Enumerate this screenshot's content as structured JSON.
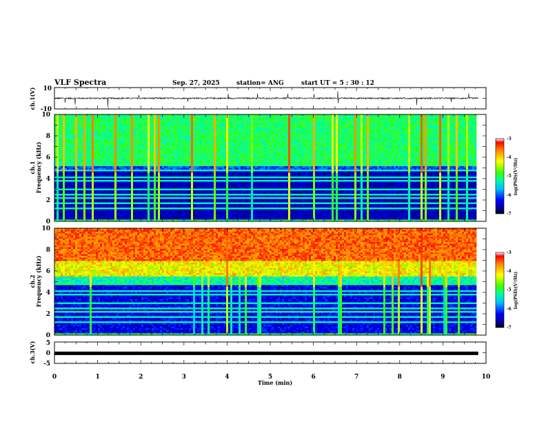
{
  "header": {
    "title": "VLF Spectra",
    "date": "Sep. 27, 2025",
    "station": "station= ANG",
    "start": "start  UT  =  5 : 30 : 12"
  },
  "chart_data": [
    {
      "type": "line",
      "name": "ch1-waveform",
      "ylabel": "ch.1(V)",
      "ylim": [
        -10,
        10
      ],
      "yticks": [
        "10",
        "-10"
      ],
      "baseline_v": 0
    },
    {
      "type": "heatmap",
      "name": "ch1-spectrogram",
      "ylabel": "ch.1  Frequency (kHz)",
      "ylabel_line1": "ch.1",
      "ylabel_line2": "Frequency (kHz)",
      "ylim_khz": [
        0,
        10
      ],
      "yticks": [
        "0",
        "2",
        "4",
        "6",
        "8",
        "10"
      ],
      "colorbar": {
        "label": "log(PSD)(V²/Hz)",
        "range": [
          -7,
          -3
        ],
        "ticks": [
          "-3",
          "-4",
          "-5",
          "-6",
          "-7"
        ]
      }
    },
    {
      "type": "heatmap",
      "name": "ch2-spectrogram",
      "ylabel": "ch.2  Frequency (kHz)",
      "ylabel_line1": "ch.2",
      "ylabel_line2": "Frequency (kHz)",
      "ylim_khz": [
        0,
        10
      ],
      "yticks": [
        "0",
        "2",
        "4",
        "6",
        "8",
        "10"
      ],
      "colorbar": {
        "label": "log(PSD)(V²/Hz)",
        "range": [
          -7,
          -3
        ],
        "ticks": [
          "-3",
          "-4",
          "-5",
          "-6",
          "-7"
        ]
      }
    },
    {
      "type": "line",
      "name": "ch3-waveform",
      "ylabel": "ch.3(V)",
      "ylim": [
        -5,
        5
      ],
      "yticks": [
        "5",
        "0",
        "-5"
      ],
      "baseline_v": -0.3
    }
  ],
  "xaxis": {
    "label": "Time  (min)",
    "range": [
      0,
      10
    ],
    "data_end_min": 9.82,
    "ticks": [
      "0",
      "1",
      "2",
      "3",
      "4",
      "5",
      "6",
      "7",
      "8",
      "9",
      "10"
    ]
  }
}
